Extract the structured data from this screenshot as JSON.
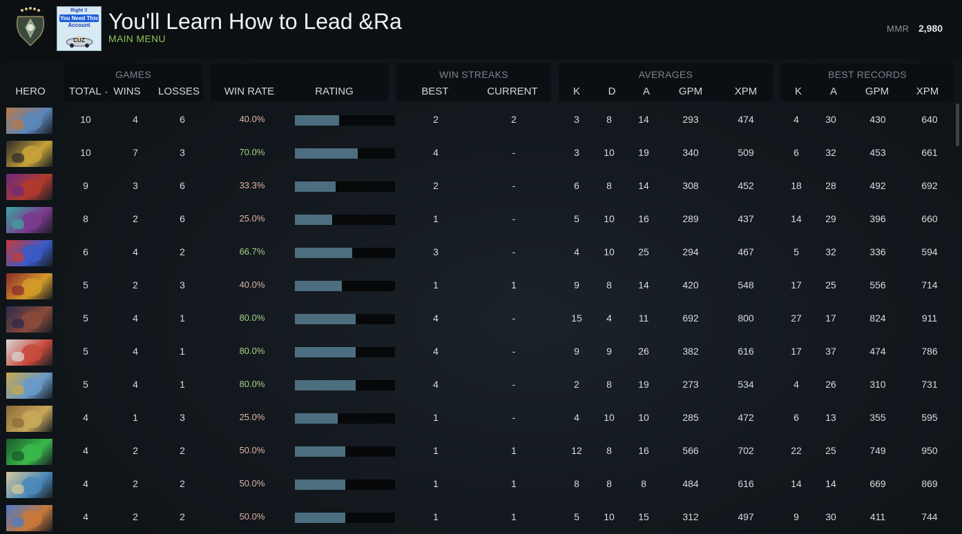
{
  "header": {
    "title": "You'll Learn How to Lead &Ra",
    "submenu": "MAIN MENU",
    "mmr_label": "MMR",
    "mmr_value": "2,980",
    "promo": {
      "line1": "Right !!",
      "line2": "You Need This",
      "line3": "Account",
      "line4": "CUZ"
    }
  },
  "groups": {
    "games": "GAMES",
    "win_streaks": "WIN STREAKS",
    "averages": "AVERAGES",
    "best_records": "BEST RECORDS"
  },
  "columns": {
    "hero": "HERO",
    "total": "TOTAL",
    "wins": "WINS",
    "losses": "LOSSES",
    "win_rate": "WIN RATE",
    "rating": "RATING",
    "streak_best": "BEST",
    "streak_current": "CURRENT",
    "avg_k": "K",
    "avg_d": "D",
    "avg_a": "A",
    "avg_gpm": "GPM",
    "avg_xpm": "XPM",
    "best_k": "K",
    "best_a": "A",
    "best_gpm": "GPM",
    "best_xpm": "XPM"
  },
  "colors": {
    "win_rate_good": "#a8d28c",
    "win_rate_bad": "#e0b4a8",
    "rating_bar": "#4d6e7f",
    "accent_green": "#8ec456"
  },
  "rows": [
    {
      "total": "10",
      "wins": "4",
      "losses": "6",
      "win_rate": "40.0%",
      "rating": 0.44,
      "good": false,
      "sbest": "2",
      "scur": "2",
      "ak": "3",
      "ad": "8",
      "aa": "14",
      "agpm": "293",
      "axpm": "474",
      "bk": "4",
      "ba": "30",
      "bgpm": "430",
      "bxpm": "640",
      "c1": "#5a86b8",
      "c2": "#b87a4a"
    },
    {
      "total": "10",
      "wins": "7",
      "losses": "3",
      "win_rate": "70.0%",
      "rating": 0.63,
      "good": true,
      "sbest": "4",
      "scur": "-",
      "ak": "3",
      "ad": "10",
      "aa": "19",
      "agpm": "340",
      "axpm": "509",
      "bk": "6",
      "ba": "32",
      "bgpm": "453",
      "bxpm": "661",
      "c1": "#c7a23a",
      "c2": "#2a2a2a"
    },
    {
      "total": "9",
      "wins": "3",
      "losses": "6",
      "win_rate": "33.3%",
      "rating": 0.41,
      "good": false,
      "sbest": "2",
      "scur": "-",
      "ak": "6",
      "ad": "8",
      "aa": "14",
      "agpm": "308",
      "axpm": "452",
      "bk": "18",
      "ba": "28",
      "bgpm": "492",
      "bxpm": "692",
      "c1": "#b03a2e",
      "c2": "#6b2a7a"
    },
    {
      "total": "8",
      "wins": "2",
      "losses": "6",
      "win_rate": "25.0%",
      "rating": 0.37,
      "good": false,
      "sbest": "1",
      "scur": "-",
      "ak": "5",
      "ad": "10",
      "aa": "16",
      "agpm": "289",
      "axpm": "437",
      "bk": "14",
      "ba": "29",
      "bgpm": "396",
      "bxpm": "660",
      "c1": "#7a3a8e",
      "c2": "#3aa6a0"
    },
    {
      "total": "6",
      "wins": "4",
      "losses": "2",
      "win_rate": "66.7%",
      "rating": 0.57,
      "good": true,
      "sbest": "3",
      "scur": "-",
      "ak": "4",
      "ad": "10",
      "aa": "25",
      "agpm": "294",
      "axpm": "467",
      "bk": "5",
      "ba": "32",
      "bgpm": "336",
      "bxpm": "594",
      "c1": "#3a5ac8",
      "c2": "#c83a3a"
    },
    {
      "total": "5",
      "wins": "2",
      "losses": "3",
      "win_rate": "40.0%",
      "rating": 0.47,
      "good": false,
      "sbest": "1",
      "scur": "1",
      "ak": "9",
      "ad": "8",
      "aa": "14",
      "agpm": "420",
      "axpm": "548",
      "bk": "17",
      "ba": "25",
      "bgpm": "556",
      "bxpm": "714",
      "c1": "#d49a2a",
      "c2": "#8a2a2a"
    },
    {
      "total": "5",
      "wins": "4",
      "losses": "1",
      "win_rate": "80.0%",
      "rating": 0.61,
      "good": true,
      "sbest": "4",
      "scur": "-",
      "ak": "15",
      "ad": "4",
      "aa": "11",
      "agpm": "692",
      "axpm": "800",
      "bk": "27",
      "ba": "17",
      "bgpm": "824",
      "bxpm": "911",
      "c1": "#8a4a3a",
      "c2": "#2a2a4a"
    },
    {
      "total": "5",
      "wins": "4",
      "losses": "1",
      "win_rate": "80.0%",
      "rating": 0.61,
      "good": true,
      "sbest": "4",
      "scur": "-",
      "ak": "9",
      "ad": "9",
      "aa": "26",
      "agpm": "382",
      "axpm": "616",
      "bk": "17",
      "ba": "37",
      "bgpm": "474",
      "bxpm": "786",
      "c1": "#c84a3a",
      "c2": "#d8d8d8"
    },
    {
      "total": "5",
      "wins": "4",
      "losses": "1",
      "win_rate": "80.0%",
      "rating": 0.61,
      "good": true,
      "sbest": "4",
      "scur": "-",
      "ak": "2",
      "ad": "8",
      "aa": "19",
      "agpm": "273",
      "axpm": "534",
      "bk": "4",
      "ba": "26",
      "bgpm": "310",
      "bxpm": "731",
      "c1": "#6a9ac8",
      "c2": "#c8a84a"
    },
    {
      "total": "4",
      "wins": "1",
      "losses": "3",
      "win_rate": "25.0%",
      "rating": 0.43,
      "good": false,
      "sbest": "1",
      "scur": "-",
      "ak": "4",
      "ad": "10",
      "aa": "10",
      "agpm": "285",
      "axpm": "472",
      "bk": "6",
      "ba": "13",
      "bgpm": "355",
      "bxpm": "595",
      "c1": "#c8a85a",
      "c2": "#8a6a3a"
    },
    {
      "total": "4",
      "wins": "2",
      "losses": "2",
      "win_rate": "50.0%",
      "rating": 0.5,
      "good": false,
      "sbest": "1",
      "scur": "1",
      "ak": "12",
      "ad": "8",
      "aa": "16",
      "agpm": "566",
      "axpm": "702",
      "bk": "22",
      "ba": "25",
      "bgpm": "749",
      "bxpm": "950",
      "c1": "#3ab84a",
      "c2": "#1a5a2a"
    },
    {
      "total": "4",
      "wins": "2",
      "losses": "2",
      "win_rate": "50.0%",
      "rating": 0.5,
      "good": false,
      "sbest": "1",
      "scur": "1",
      "ak": "8",
      "ad": "8",
      "aa": "8",
      "agpm": "484",
      "axpm": "616",
      "bk": "14",
      "ba": "14",
      "bgpm": "669",
      "bxpm": "869",
      "c1": "#4a8ab8",
      "c2": "#d8c89a"
    },
    {
      "total": "4",
      "wins": "2",
      "losses": "2",
      "win_rate": "50.0%",
      "rating": 0.5,
      "good": false,
      "sbest": "1",
      "scur": "1",
      "ak": "5",
      "ad": "10",
      "aa": "15",
      "agpm": "312",
      "axpm": "497",
      "bk": "9",
      "ba": "30",
      "bgpm": "411",
      "bxpm": "744",
      "c1": "#c8783a",
      "c2": "#4a7ac8"
    }
  ]
}
